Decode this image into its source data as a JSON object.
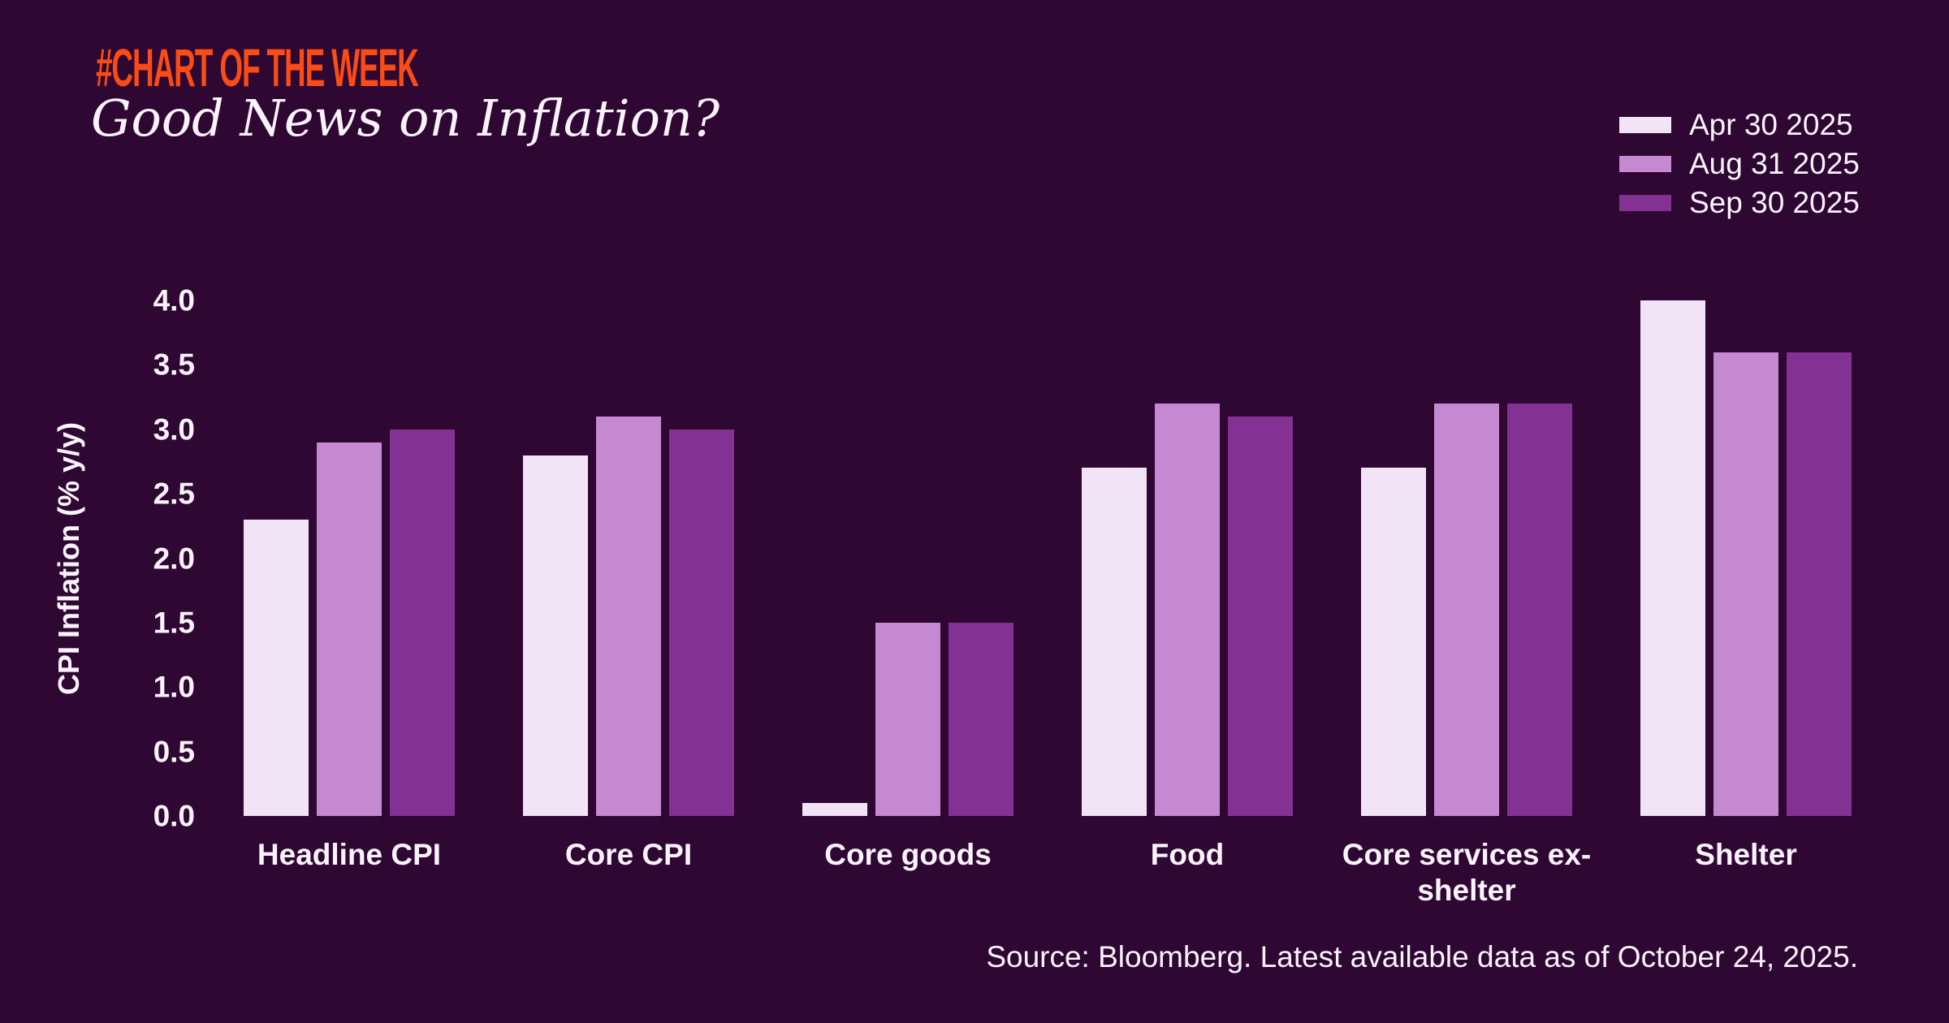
{
  "header": {
    "kicker": "#CHART OF THE WEEK",
    "title": "Good News on Inflation?"
  },
  "chart_data": {
    "type": "bar",
    "title": "Good News on Inflation?",
    "categories": [
      "Headline CPI",
      "Core CPI",
      "Core goods",
      "Food",
      "Core services ex-shelter",
      "Shelter"
    ],
    "series": [
      {
        "name": "Apr 30 2025",
        "color": "#F3E3F6",
        "values": [
          2.3,
          2.8,
          0.1,
          2.7,
          2.7,
          4.0
        ]
      },
      {
        "name": "Aug 31 2025",
        "color": "#C489D0",
        "values": [
          2.9,
          3.1,
          1.5,
          3.2,
          3.2,
          3.6
        ]
      },
      {
        "name": "Sep 30 2025",
        "color": "#833193",
        "values": [
          3.0,
          3.0,
          1.5,
          3.1,
          3.2,
          3.6
        ]
      }
    ],
    "xlabel": "",
    "ylabel": "CPI Inflation (% y/y)",
    "ylim": [
      0,
      4.0
    ],
    "yticks": [
      0.0,
      0.5,
      1.0,
      1.5,
      2.0,
      2.5,
      3.0,
      3.5,
      4.0
    ],
    "grid": false,
    "legend_position": "top-right"
  },
  "footer": {
    "source": "Source: Bloomberg. Latest available data as of October 24, 2025."
  },
  "colors": {
    "background": "#2E0733",
    "kicker": "#F94C16",
    "text": "#FBF3FC"
  }
}
